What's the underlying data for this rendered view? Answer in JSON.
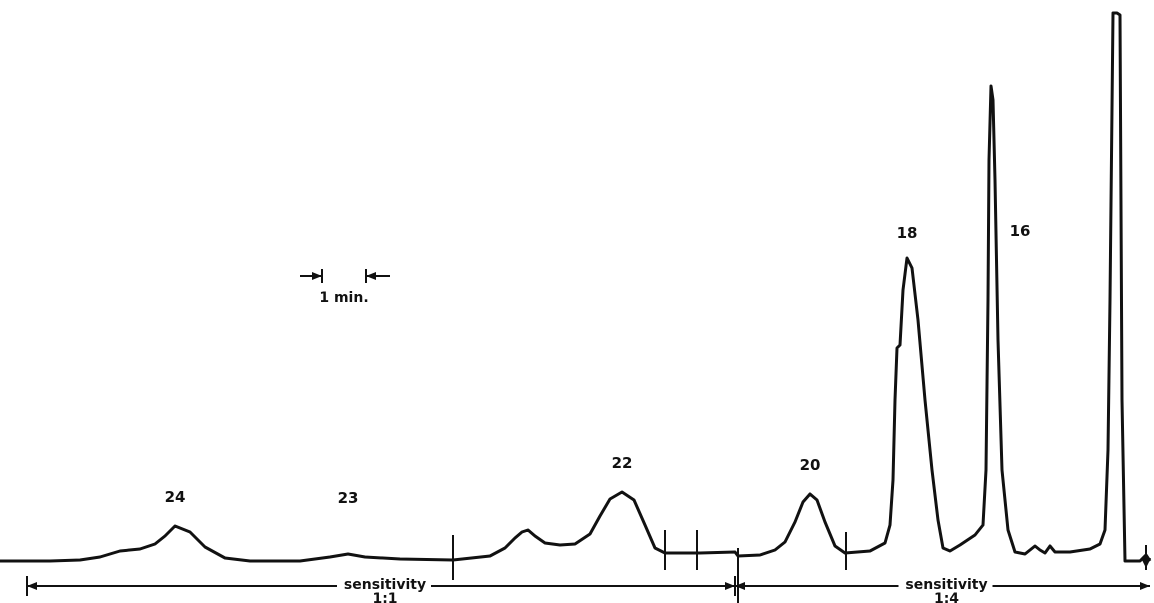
{
  "chart_data": {
    "type": "line",
    "title": "",
    "xlabel": "",
    "ylabel": "",
    "time_scale_label": "1 min.",
    "peak_labels": [
      {
        "label": "24",
        "x": 175,
        "y": 526
      },
      {
        "label": "23",
        "x": 348,
        "y": 554
      },
      {
        "label": "22",
        "x": 622,
        "y": 492
      },
      {
        "label": "20",
        "x": 810,
        "y": 494
      },
      {
        "label": "18",
        "x": 907,
        "y": 258
      },
      {
        "label": "16",
        "x": 991,
        "y": 86
      }
    ],
    "sensitivity_ranges": [
      {
        "label": "sensitivity",
        "ratio": "1:1",
        "start": 27,
        "end": 735
      },
      {
        "label": "sensitivity",
        "ratio": "1:4",
        "start": 735,
        "end": 1150
      }
    ],
    "series": [
      {
        "x": [
          0,
          50,
          80,
          100,
          120,
          140,
          155,
          165,
          175,
          190,
          205,
          225,
          250,
          300,
          330,
          348,
          365,
          400,
          453,
          490,
          505,
          515,
          522,
          528,
          535,
          545,
          560,
          575,
          590,
          600,
          610,
          622,
          634,
          645,
          655,
          665,
          700,
          735,
          738,
          760,
          775,
          785,
          795,
          803,
          810,
          817,
          825,
          835,
          845,
          870,
          885,
          890,
          893,
          895,
          897,
          900,
          903,
          907,
          912,
          918,
          925,
          932,
          938,
          943,
          950,
          960,
          975,
          983,
          986,
          988,
          989,
          991,
          993,
          995,
          998,
          1002,
          1008,
          1015,
          1025,
          1030,
          1035,
          1040,
          1045,
          1050,
          1055,
          1060,
          1070,
          1090,
          1100,
          1105,
          1108,
          1110,
          1113,
          1117,
          1120,
          1122,
          1125,
          1140,
          1146,
          1150
        ],
        "y": [
          561,
          561,
          560,
          557,
          551,
          549,
          544,
          536,
          526,
          532,
          547,
          558,
          561,
          561,
          557,
          554,
          557,
          559,
          560,
          556,
          548,
          538,
          532,
          530,
          536,
          543,
          545,
          544,
          534,
          516,
          499,
          492,
          500,
          525,
          548,
          553,
          553,
          552,
          556,
          555,
          550,
          542,
          522,
          502,
          494,
          500,
          522,
          546,
          553,
          551,
          543,
          525,
          480,
          400,
          348,
          345,
          290,
          258,
          268,
          320,
          400,
          470,
          520,
          548,
          551,
          545,
          535,
          525,
          470,
          300,
          160,
          86,
          100,
          180,
          340,
          470,
          530,
          552,
          554,
          550,
          546,
          550,
          553,
          546,
          552,
          552,
          552,
          549,
          544,
          530,
          450,
          300,
          13,
          13,
          15,
          400,
          561,
          561,
          555,
          561
        ],
        "y_axis_inverted": true
      }
    ],
    "xlim": [
      0,
      1154
    ],
    "ylim": [
      603,
      0
    ]
  }
}
